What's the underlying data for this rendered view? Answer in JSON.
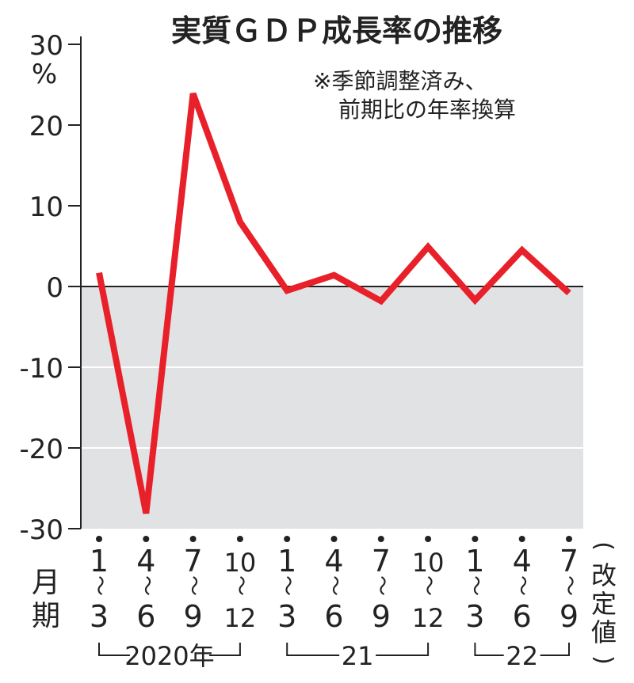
{
  "chart_data": {
    "type": "line",
    "title": "実質ＧＤＰ成長率の推移",
    "note_lines": [
      "※季節調整済み、",
      "前期比の年率換算"
    ],
    "ylabel": "%",
    "ylim": [
      -30,
      30
    ],
    "yticks": [
      30,
      20,
      10,
      0,
      -10,
      -20,
      -30
    ],
    "ytick_labels": [
      "30",
      "20",
      "10",
      "0",
      "-10",
      "-20",
      "-30"
    ],
    "grid": true,
    "shade_below_zero": true,
    "month_axis_label": [
      "月",
      "期"
    ],
    "categories": [
      {
        "from": "1",
        "to": "3"
      },
      {
        "from": "4",
        "to": "6"
      },
      {
        "from": "7",
        "to": "9"
      },
      {
        "from": "10",
        "to": "12"
      },
      {
        "from": "1",
        "to": "3"
      },
      {
        "from": "4",
        "to": "6"
      },
      {
        "from": "7",
        "to": "9"
      },
      {
        "from": "10",
        "to": "12"
      },
      {
        "from": "1",
        "to": "3"
      },
      {
        "from": "4",
        "to": "6"
      },
      {
        "from": "7",
        "to": "9"
      }
    ],
    "tilde": "～",
    "year_groups": [
      {
        "label": "2020年",
        "start": 0,
        "end": 3
      },
      {
        "label": "21",
        "start": 4,
        "end": 7
      },
      {
        "label": "22",
        "start": 8,
        "end": 10
      }
    ],
    "last_point_note": "(改定値)",
    "series": [
      {
        "name": "実質GDP成長率",
        "values": [
          1.7,
          -28.1,
          23.9,
          8.0,
          -0.5,
          1.4,
          -1.8,
          4.9,
          -1.7,
          4.5,
          -0.8
        ]
      }
    ],
    "colors": {
      "line": "#e8202a",
      "shade": "#e1e2e4",
      "axis": "#222222"
    }
  }
}
